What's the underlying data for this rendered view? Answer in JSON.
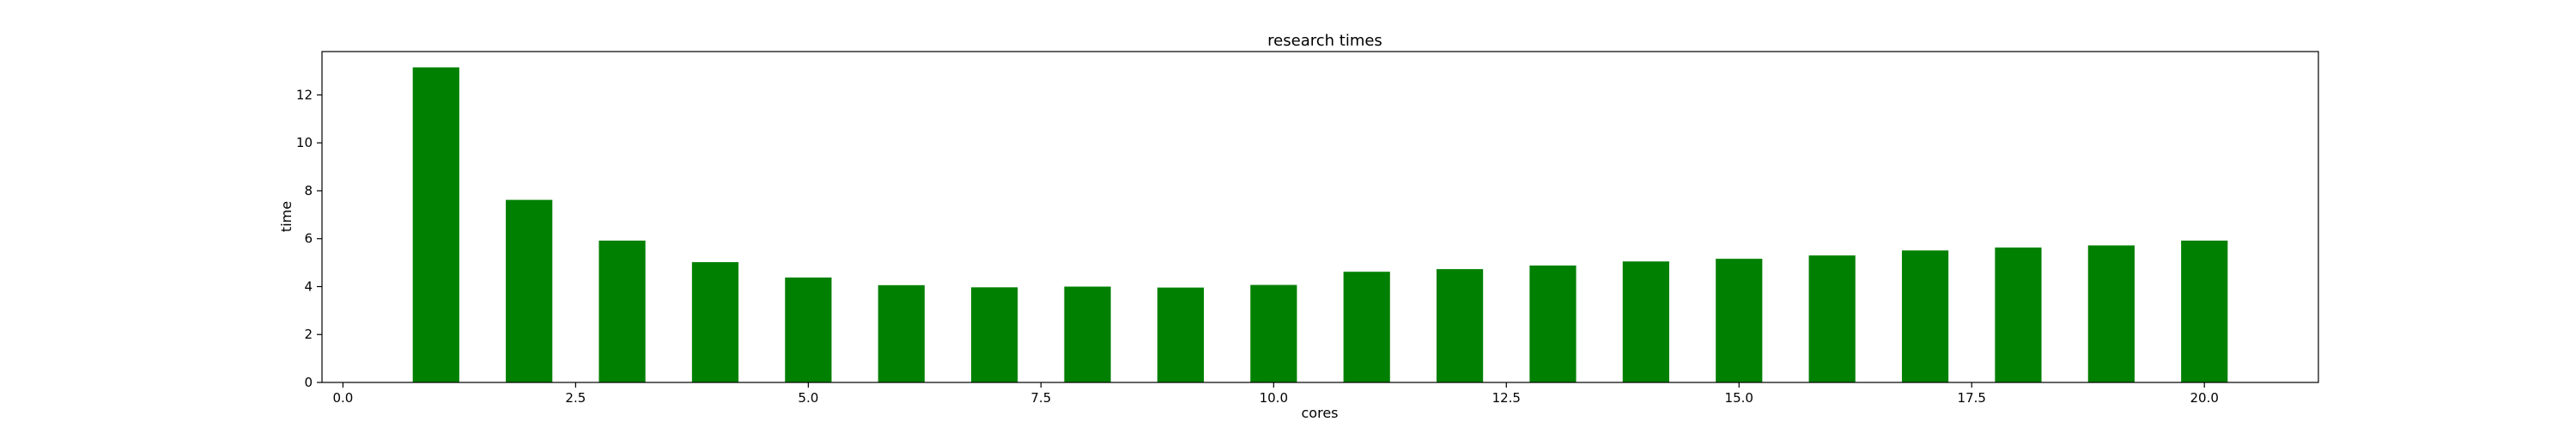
{
  "chart_data": {
    "type": "bar",
    "title": "research times",
    "xlabel": "cores",
    "ylabel": "time",
    "x": [
      1,
      2,
      3,
      4,
      5,
      6,
      7,
      8,
      9,
      10,
      11,
      12,
      13,
      14,
      15,
      16,
      17,
      18,
      19,
      20
    ],
    "values": [
      13.15,
      7.62,
      5.92,
      5.02,
      4.38,
      4.06,
      3.97,
      4.0,
      3.96,
      4.07,
      4.62,
      4.73,
      4.88,
      5.05,
      5.16,
      5.3,
      5.51,
      5.63,
      5.72,
      5.92
    ],
    "bar_width": 0.5,
    "xlim": [
      -0.225,
      21.225
    ],
    "ylim": [
      0,
      13.81
    ],
    "xticks": [
      0.0,
      2.5,
      5.0,
      7.5,
      10.0,
      12.5,
      15.0,
      17.5,
      20.0
    ],
    "xtick_labels": [
      "0.0",
      "2.5",
      "5.0",
      "7.5",
      "10.0",
      "12.5",
      "15.0",
      "17.5",
      "20.0"
    ],
    "yticks": [
      0,
      2,
      4,
      6,
      8,
      10,
      12
    ],
    "ytick_labels": [
      "0",
      "2",
      "4",
      "6",
      "8",
      "10",
      "12"
    ],
    "bar_color": "#008000",
    "grid": false,
    "legend": "none"
  }
}
